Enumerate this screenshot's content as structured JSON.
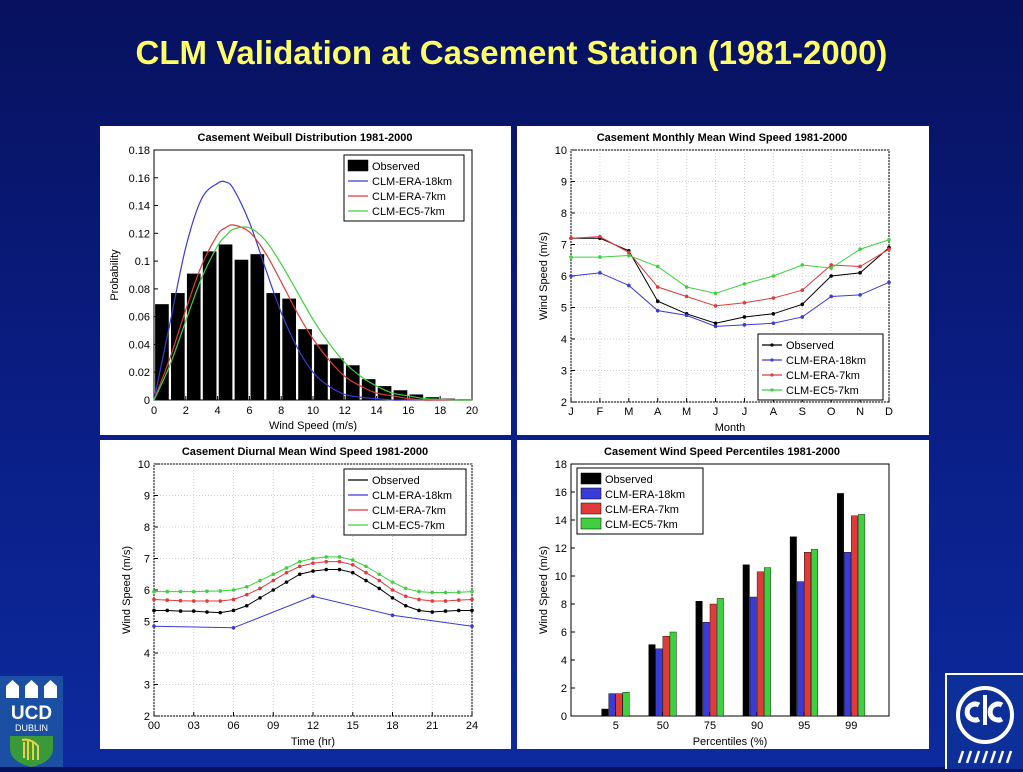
{
  "slide": {
    "title": "CLM Validation at Casement Station (1981-2000)"
  },
  "logos": {
    "left_line1": "UCD",
    "left_line2": "DUBLIN",
    "right_name": "C4i-logo"
  },
  "colors": {
    "observed": "#000000",
    "era18": "#3a3ad8",
    "era7": "#e03a3a",
    "ec5": "#3fd03f"
  },
  "chart_data": [
    {
      "type": "bar",
      "title": "Casement Weibull Distribution 1981-2000",
      "xlabel": "Wind Speed (m/s)",
      "ylabel": "Probability",
      "xlim": [
        0,
        20
      ],
      "ylim": [
        0,
        0.18
      ],
      "xticks": [
        0,
        2,
        4,
        6,
        8,
        10,
        12,
        14,
        16,
        18,
        20
      ],
      "yticks": [
        0,
        0.02,
        0.04,
        0.06,
        0.08,
        0.1,
        0.12,
        0.14,
        0.16,
        0.18
      ],
      "legend_position": "top-right",
      "bar_x": [
        0.5,
        1.5,
        2.5,
        3.5,
        4.5,
        5.5,
        6.5,
        7.5,
        8.5,
        9.5,
        10.5,
        11.5,
        12.5,
        13.5,
        14.5,
        15.5,
        16.5,
        17.5,
        18.5,
        19.5
      ],
      "bar_values": [
        0.069,
        0.077,
        0.091,
        0.107,
        0.112,
        0.101,
        0.105,
        0.077,
        0.073,
        0.051,
        0.04,
        0.03,
        0.025,
        0.015,
        0.01,
        0.007,
        0.004,
        0.002,
        0.001,
        0.0005
      ],
      "bar_name": "Observed",
      "curve_x": [
        0,
        1,
        2,
        3,
        4,
        4.5,
        5,
        6,
        7,
        8,
        9,
        10,
        11,
        12,
        13,
        14,
        15,
        16,
        17,
        18,
        19,
        20
      ],
      "series": [
        {
          "name": "CLM-ERA-18km",
          "values": [
            0,
            0.055,
            0.11,
            0.145,
            0.156,
            0.157,
            0.152,
            0.128,
            0.095,
            0.063,
            0.038,
            0.02,
            0.01,
            0.004,
            0.002,
            0.001,
            0,
            0,
            0,
            0,
            0,
            0
          ]
        },
        {
          "name": "CLM-ERA-7km",
          "values": [
            0,
            0.03,
            0.065,
            0.097,
            0.119,
            0.124,
            0.126,
            0.121,
            0.106,
            0.085,
            0.063,
            0.044,
            0.029,
            0.017,
            0.01,
            0.005,
            0.003,
            0.001,
            0,
            0,
            0,
            0
          ]
        },
        {
          "name": "CLM-EC5-7km",
          "values": [
            0,
            0.025,
            0.057,
            0.088,
            0.111,
            0.118,
            0.123,
            0.124,
            0.115,
            0.098,
            0.078,
            0.058,
            0.041,
            0.027,
            0.017,
            0.01,
            0.005,
            0.003,
            0.001,
            0.0005,
            0,
            0
          ]
        }
      ]
    },
    {
      "type": "line",
      "title": "Casement Monthly Mean Wind Speed 1981-2000",
      "xlabel": "Month",
      "ylabel": "Wind Speed (m/s)",
      "categories": [
        "J",
        "F",
        "M",
        "A",
        "M",
        "J",
        "J",
        "A",
        "S",
        "O",
        "N",
        "D"
      ],
      "ylim": [
        2,
        10
      ],
      "yticks": [
        2,
        3,
        4,
        5,
        6,
        7,
        8,
        9,
        10
      ],
      "legend_position": "bottom-right",
      "series": [
        {
          "name": "Observed",
          "values": [
            7.2,
            7.2,
            6.8,
            5.2,
            4.8,
            4.5,
            4.7,
            4.8,
            5.1,
            6.0,
            6.1,
            6.9
          ]
        },
        {
          "name": "CLM-ERA-18km",
          "values": [
            6.0,
            6.1,
            5.7,
            4.9,
            4.75,
            4.4,
            4.45,
            4.5,
            4.7,
            5.35,
            5.4,
            5.8
          ]
        },
        {
          "name": "CLM-ERA-7km",
          "values": [
            7.2,
            7.25,
            6.75,
            5.65,
            5.35,
            5.05,
            5.15,
            5.3,
            5.55,
            6.35,
            6.3,
            6.85
          ]
        },
        {
          "name": "CLM-EC5-7km",
          "values": [
            6.6,
            6.6,
            6.65,
            6.3,
            5.65,
            5.45,
            5.75,
            6.0,
            6.35,
            6.25,
            6.85,
            7.15
          ]
        }
      ]
    },
    {
      "type": "line",
      "title": "Casement Diurnal Mean Wind Speed 1981-2000",
      "xlabel": "Time (hr)",
      "ylabel": "Wind Speed (m/s)",
      "xlim": [
        0,
        24
      ],
      "ylim": [
        2,
        10
      ],
      "xticks": [
        0,
        3,
        6,
        9,
        12,
        15,
        18,
        21,
        24
      ],
      "xticklabels": [
        "00",
        "03",
        "06",
        "09",
        "12",
        "15",
        "18",
        "21",
        "24"
      ],
      "yticks": [
        2,
        3,
        4,
        5,
        6,
        7,
        8,
        9,
        10
      ],
      "legend_position": "top-right",
      "series": [
        {
          "name": "Observed",
          "x": [
            0,
            1,
            2,
            3,
            4,
            5,
            6,
            7,
            8,
            9,
            10,
            11,
            12,
            13,
            14,
            15,
            16,
            17,
            18,
            19,
            20,
            21,
            22,
            23,
            24
          ],
          "values": [
            5.35,
            5.35,
            5.33,
            5.33,
            5.3,
            5.28,
            5.35,
            5.5,
            5.75,
            6.0,
            6.25,
            6.5,
            6.6,
            6.65,
            6.65,
            6.55,
            6.3,
            6.05,
            5.75,
            5.5,
            5.35,
            5.3,
            5.33,
            5.35,
            5.35
          ]
        },
        {
          "name": "CLM-ERA-18km",
          "x": [
            0,
            6,
            12,
            18,
            24
          ],
          "values": [
            4.85,
            4.8,
            5.8,
            5.2,
            4.85
          ]
        },
        {
          "name": "CLM-ERA-7km",
          "x": [
            0,
            1,
            2,
            3,
            4,
            5,
            6,
            7,
            8,
            9,
            10,
            11,
            12,
            13,
            14,
            15,
            16,
            17,
            18,
            19,
            20,
            21,
            22,
            23,
            24
          ],
          "values": [
            5.7,
            5.68,
            5.66,
            5.65,
            5.65,
            5.65,
            5.7,
            5.85,
            6.05,
            6.3,
            6.55,
            6.75,
            6.85,
            6.9,
            6.9,
            6.8,
            6.55,
            6.3,
            6.0,
            5.8,
            5.7,
            5.65,
            5.65,
            5.68,
            5.7
          ]
        },
        {
          "name": "CLM-EC5-7km",
          "x": [
            0,
            1,
            2,
            3,
            4,
            5,
            6,
            7,
            8,
            9,
            10,
            11,
            12,
            13,
            14,
            15,
            16,
            17,
            18,
            19,
            20,
            21,
            22,
            23,
            24
          ],
          "values": [
            5.95,
            5.95,
            5.95,
            5.95,
            5.96,
            5.97,
            6.0,
            6.1,
            6.3,
            6.5,
            6.7,
            6.9,
            7.0,
            7.05,
            7.05,
            6.95,
            6.75,
            6.5,
            6.25,
            6.05,
            5.95,
            5.92,
            5.92,
            5.93,
            5.95
          ]
        }
      ]
    },
    {
      "type": "bar",
      "title": "Casement Wind Speed Percentiles 1981-2000",
      "xlabel": "Percentiles (%)",
      "ylabel": "Wind Speed (m/s)",
      "categories": [
        "5",
        "50",
        "75",
        "90",
        "95",
        "99"
      ],
      "ylim": [
        0,
        18
      ],
      "yticks": [
        0,
        2,
        4,
        6,
        8,
        10,
        12,
        14,
        16,
        18
      ],
      "legend_position": "top-left",
      "series": [
        {
          "name": "Observed",
          "values": [
            0.5,
            5.1,
            8.2,
            10.8,
            12.8,
            15.9
          ]
        },
        {
          "name": "CLM-ERA-18km",
          "values": [
            1.6,
            4.8,
            6.7,
            8.5,
            9.6,
            11.7
          ]
        },
        {
          "name": "CLM-ERA-7km",
          "values": [
            1.6,
            5.7,
            8.0,
            10.3,
            11.7,
            14.3
          ]
        },
        {
          "name": "CLM-EC5-7km",
          "values": [
            1.7,
            6.0,
            8.4,
            10.6,
            11.9,
            14.4
          ]
        }
      ]
    }
  ]
}
